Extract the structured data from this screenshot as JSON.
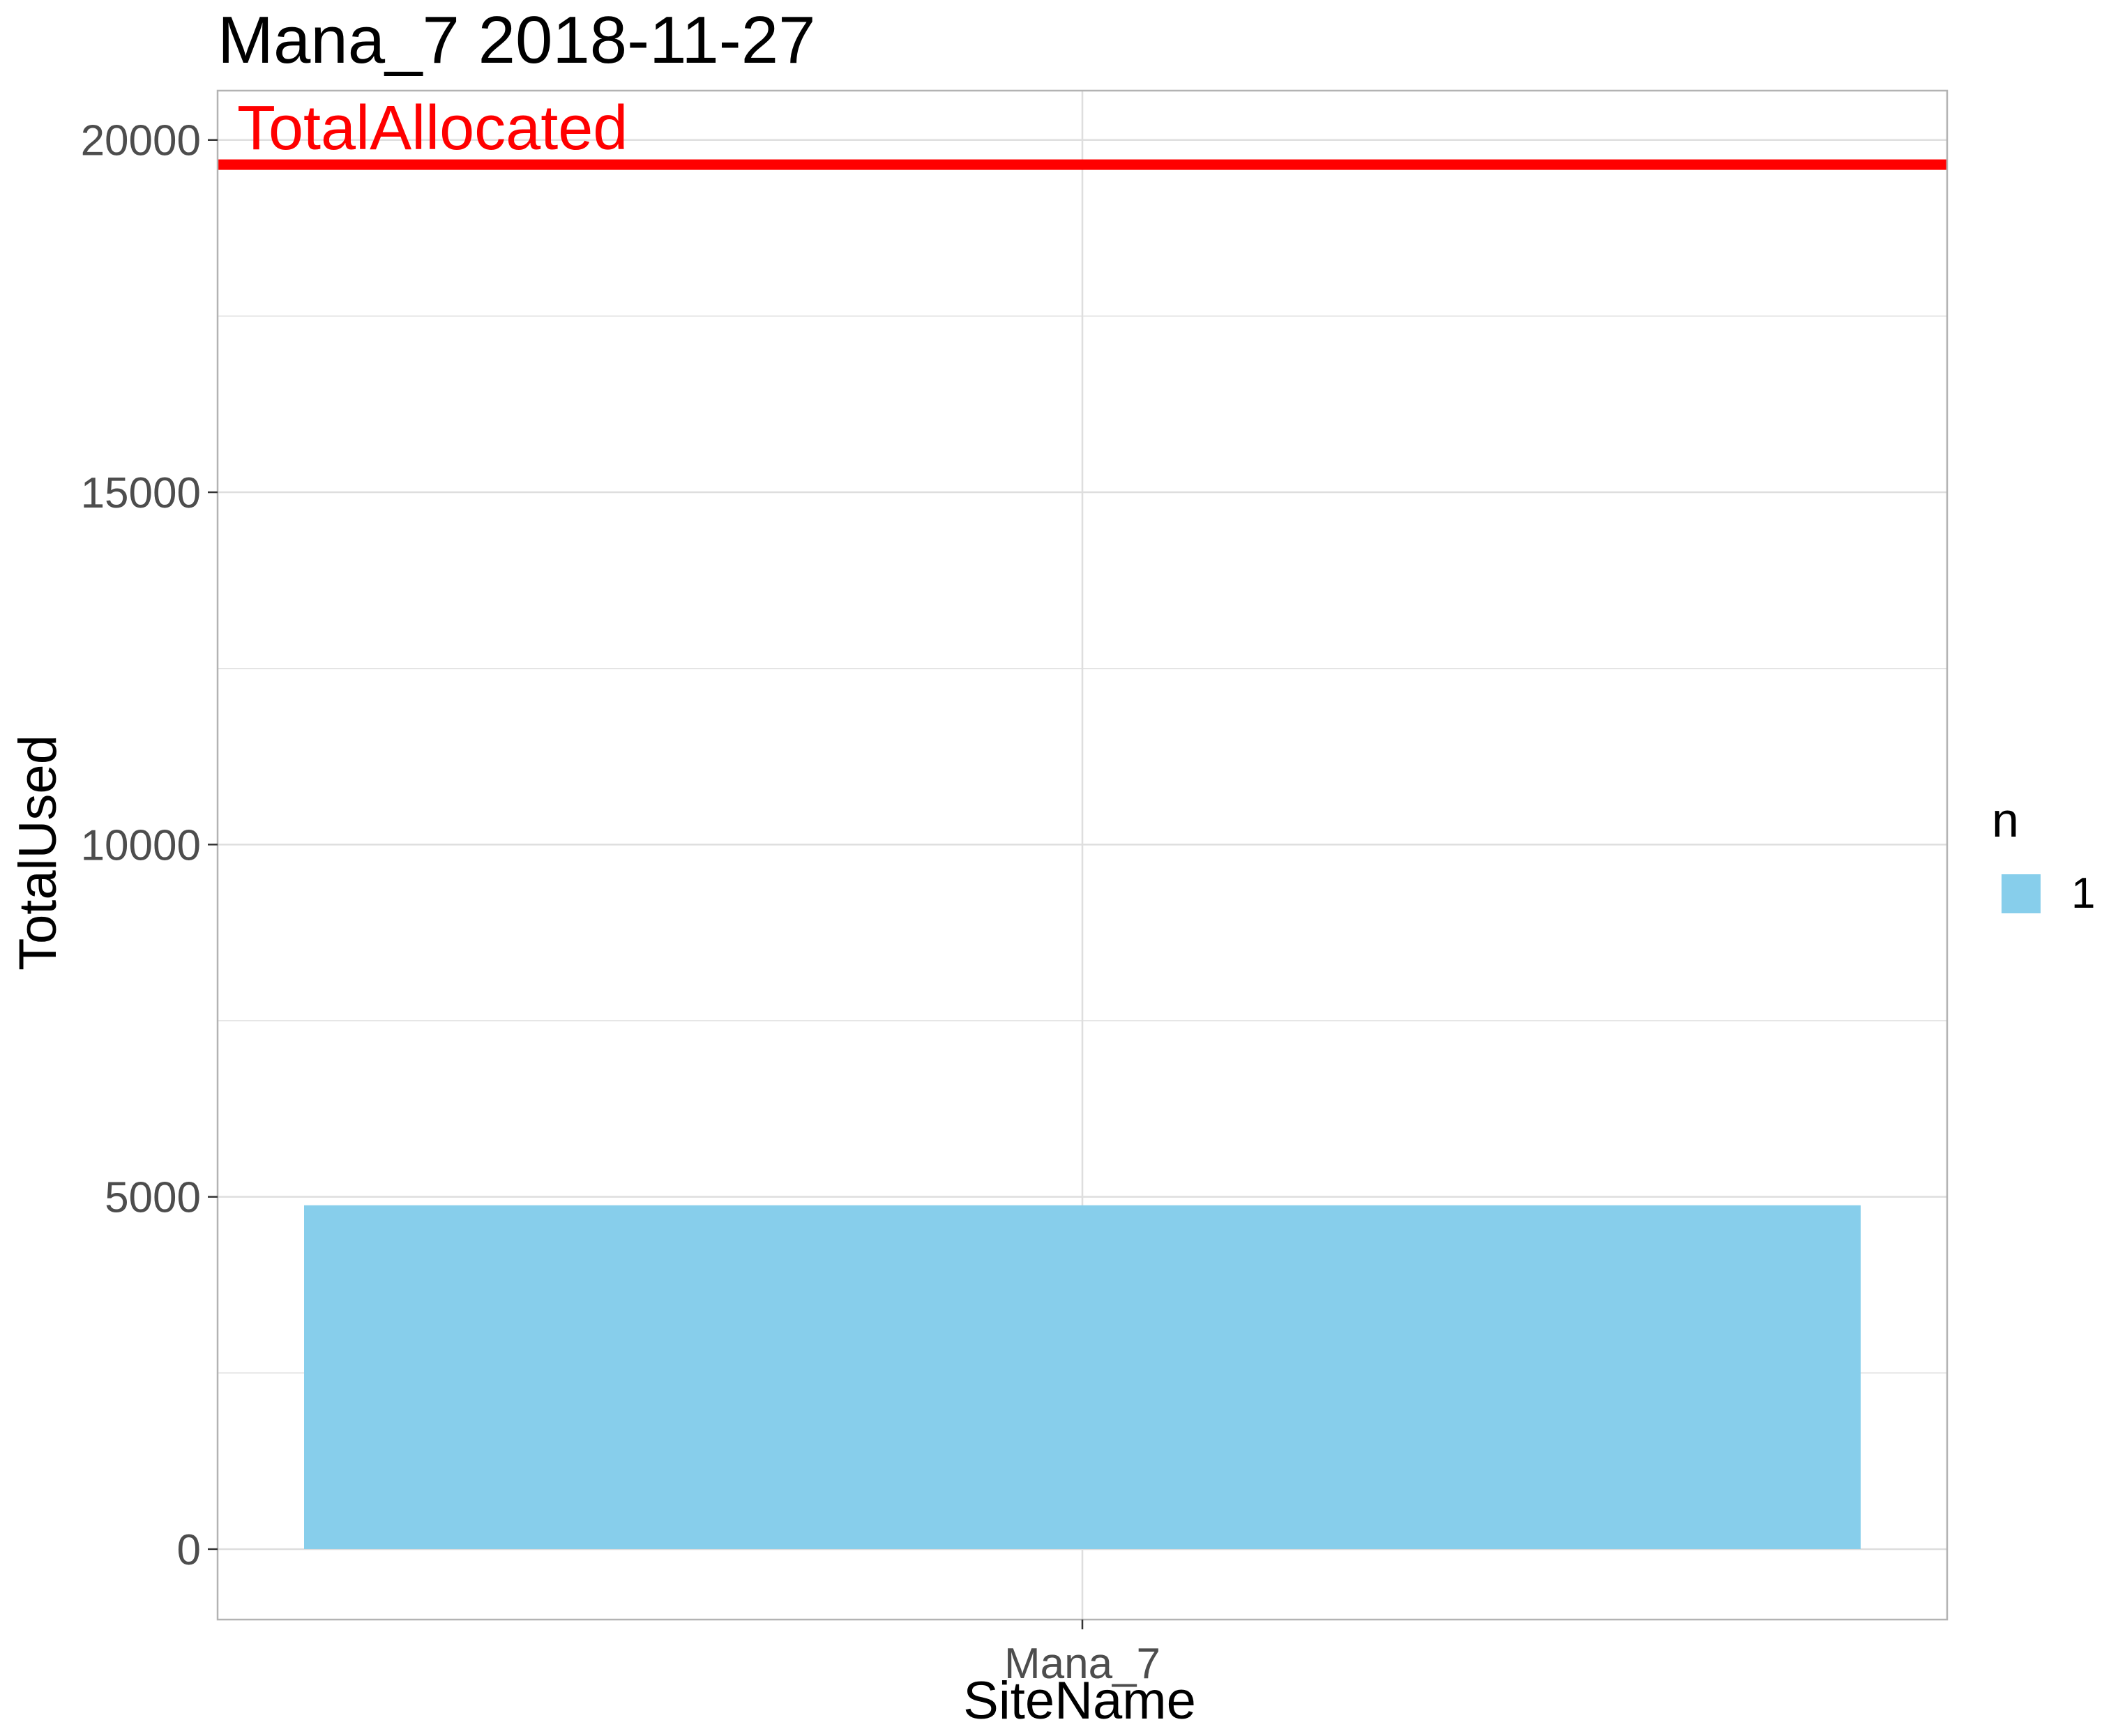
{
  "chart_data": {
    "type": "bar",
    "title": "Mana_7 2018-11-27",
    "xlabel": "SiteName",
    "ylabel": "TotalUsed",
    "categories": [
      "Mana_7"
    ],
    "series": [
      {
        "name": "1",
        "values": [
          4880
        ]
      }
    ],
    "ylim": [
      -1000,
      20700
    ],
    "yticks": [
      0,
      5000,
      10000,
      15000,
      20000
    ],
    "ytick_labels": [
      "0",
      "5000",
      "10000",
      "15000",
      "20000"
    ],
    "grid": true,
    "legend": {
      "title": "n",
      "position": "right",
      "entries": [
        "1"
      ]
    },
    "reference_line": {
      "label": "TotalAllocated",
      "value": 19650,
      "color": "#ff0000"
    },
    "colors": {
      "bar": "#87ceeb",
      "reference": "#ff0000",
      "grid": "#dedede",
      "border": "#b3b3b3"
    }
  }
}
